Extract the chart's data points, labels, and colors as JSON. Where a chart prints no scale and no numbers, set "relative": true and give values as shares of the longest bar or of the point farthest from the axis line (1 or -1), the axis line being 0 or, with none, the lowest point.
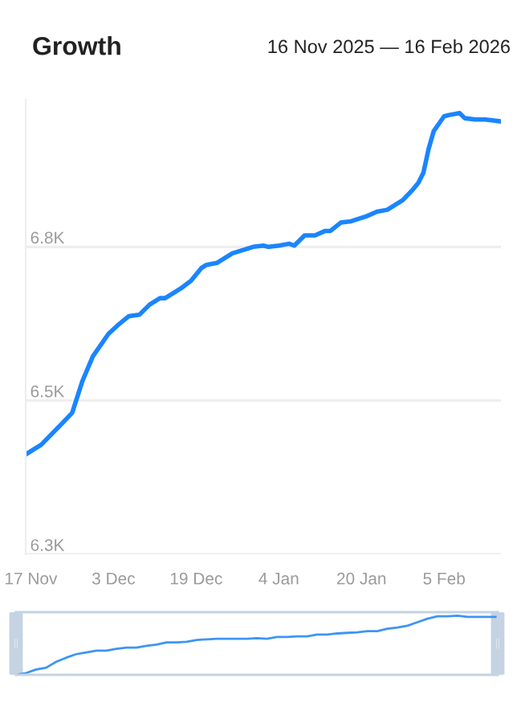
{
  "chart_data": [
    {
      "type": "line",
      "title": "Growth",
      "subtitle": "16 Nov 2025 — 16 Feb 2026",
      "grid": "y",
      "legend": false,
      "x": [
        "2025-11-16",
        "2025-11-19",
        "2025-11-23",
        "2025-11-25",
        "2025-11-27",
        "2025-11-29",
        "2025-12-02",
        "2025-12-04",
        "2025-12-06",
        "2025-12-08",
        "2025-12-10",
        "2025-12-12",
        "2025-12-13",
        "2025-12-16",
        "2025-12-18",
        "2025-12-20",
        "2025-12-21",
        "2025-12-23",
        "2025-12-26",
        "2025-12-28",
        "2025-12-30",
        "2026-01-01",
        "2026-01-02",
        "2026-01-04",
        "2026-01-06",
        "2026-01-07",
        "2026-01-09",
        "2026-01-11",
        "2026-01-13",
        "2026-01-14",
        "2026-01-16",
        "2026-01-18",
        "2026-01-21",
        "2026-01-23",
        "2026-01-25",
        "2026-01-27",
        "2026-01-28",
        "2026-01-30",
        "2026-01-31",
        "2026-02-01",
        "2026-02-02",
        "2026-02-03",
        "2026-02-05",
        "2026-02-06",
        "2026-02-08",
        "2026-02-09",
        "2026-02-11",
        "2026-02-13",
        "2026-02-16"
      ],
      "series": [
        {
          "color": "#1a85ff",
          "values": [
            6456,
            6471,
            6504,
            6521,
            6571,
            6609,
            6644,
            6659,
            6672,
            6674,
            6690,
            6700,
            6700,
            6715,
            6727,
            6747,
            6752,
            6755,
            6770,
            6775,
            6780,
            6782,
            6780,
            6782,
            6785,
            6782,
            6798,
            6798,
            6805,
            6805,
            6818,
            6820,
            6828,
            6835,
            6838,
            6848,
            6853,
            6870,
            6880,
            6896,
            6933,
            6961,
            6984,
            6986,
            6989,
            6981,
            6979,
            6979,
            6976
          ]
        }
      ],
      "xlim": [
        "2025-11-16",
        "2026-02-16"
      ],
      "xticks": [
        {
          "value": "2025-11-17",
          "label": "17 Nov"
        },
        {
          "value": "2025-12-03",
          "label": "3 Dec"
        },
        {
          "value": "2025-12-19",
          "label": "19 Dec"
        },
        {
          "value": "2026-01-04",
          "label": "4 Jan"
        },
        {
          "value": "2026-01-20",
          "label": "20 Jan"
        },
        {
          "value": "2026-02-05",
          "label": "5 Feb"
        }
      ],
      "ylim": [
        6300,
        7010
      ],
      "yticks": [
        {
          "value": 6300,
          "label": "6.3K"
        },
        {
          "value": 6540,
          "label": "6.5K"
        },
        {
          "value": 6780,
          "label": "6.8K"
        }
      ]
    },
    {
      "type": "line",
      "relative": true,
      "grid": false,
      "categories": [
        null,
        null,
        null,
        null,
        null,
        null,
        null,
        null,
        null,
        null,
        null,
        null,
        null,
        null,
        null,
        null,
        null,
        null,
        null,
        null,
        null,
        null,
        null,
        null,
        null,
        null,
        null,
        null,
        null,
        null,
        null,
        null,
        null,
        null,
        null,
        null,
        null,
        null,
        null,
        null,
        null,
        null,
        null,
        null,
        null,
        null,
        null,
        null,
        null
      ],
      "series": [
        {
          "color": "#3d95f5",
          "values": [
            0,
            0.03,
            0.09,
            0.12,
            0.22,
            0.29,
            0.35,
            0.38,
            0.41,
            0.41,
            0.44,
            0.46,
            0.46,
            0.49,
            0.51,
            0.55,
            0.55,
            0.56,
            0.59,
            0.6,
            0.61,
            0.61,
            0.61,
            0.61,
            0.62,
            0.61,
            0.64,
            0.64,
            0.65,
            0.65,
            0.68,
            0.68,
            0.7,
            0.71,
            0.72,
            0.74,
            0.74,
            0.78,
            0.8,
            0.83,
            0.89,
            0.95,
            0.99,
            0.99,
            1,
            0.98,
            0.98,
            0.98,
            0.98
          ]
        }
      ]
    }
  ]
}
